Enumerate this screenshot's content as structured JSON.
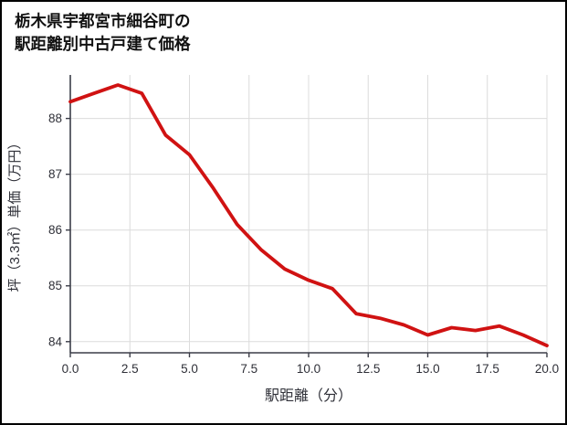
{
  "title": {
    "line1": "栃木県宇都宮市細谷町の",
    "line2": "駅距離別中古戸建て価格"
  },
  "chart_data": {
    "type": "line",
    "title": "栃木県宇都宮市細谷町の駅距離別中古戸建て価格",
    "xlabel": "駅距離（分）",
    "ylabel": "坪（3.3㎡）単価（万円）",
    "x": [
      0,
      1,
      2,
      3,
      4,
      5,
      6,
      7,
      8,
      9,
      10,
      11,
      12,
      13,
      14,
      15,
      16,
      17,
      18,
      19,
      20
    ],
    "values": [
      88.3,
      88.45,
      88.6,
      88.45,
      87.7,
      87.35,
      86.75,
      86.1,
      85.65,
      85.3,
      85.1,
      84.95,
      84.5,
      84.42,
      84.3,
      84.12,
      84.25,
      84.2,
      84.28,
      84.12,
      83.93
    ],
    "xlim": [
      0,
      20
    ],
    "ylim": [
      83.8,
      88.78
    ],
    "x_ticks": [
      0,
      2.5,
      5,
      7.5,
      10,
      12.5,
      15,
      17.5,
      20
    ],
    "x_tick_labels": [
      "0.0",
      "2.5",
      "5.0",
      "7.5",
      "10.0",
      "12.5",
      "15.0",
      "17.5",
      "20.0"
    ],
    "y_ticks": [
      84,
      85,
      86,
      87,
      88
    ],
    "y_tick_labels": [
      "84",
      "85",
      "86",
      "87",
      "88"
    ],
    "grid": true,
    "legend": "none",
    "line_color": "#d01212",
    "grid_color": "#dcdcdc",
    "spine_color": "#3b3d48",
    "label_color": "#2f3038"
  }
}
